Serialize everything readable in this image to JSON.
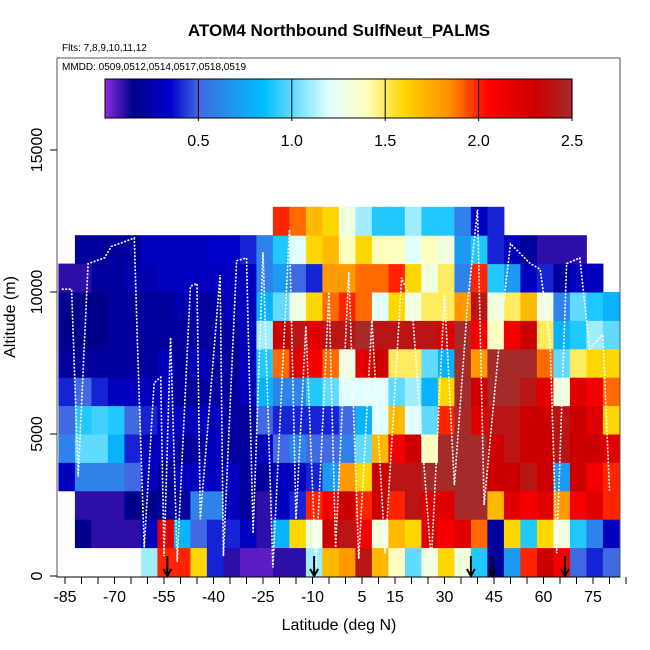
{
  "chart_data": {
    "type": "heatmap",
    "title": "ATOM4 Northbound SulfNeut_PALMS",
    "subtitle_flights": "Flts: 7,8,9,10,11,12",
    "subtitle_dates": "MMDD: 0509,0512,0514,0517,0518,0519",
    "xlabel": "Latitude (deg N)",
    "ylabel": "Altitude (m)",
    "xlim": [
      -87.5,
      85.5
    ],
    "ylim": [
      0,
      18200
    ],
    "x_tick_labels": [
      "-85",
      "-70",
      "-55",
      "-40",
      "-25",
      "-10",
      "5",
      "15",
      "30",
      "45",
      "60",
      "75"
    ],
    "x_tick_values": [
      -85,
      -70,
      -55,
      -40,
      -25,
      -10,
      5,
      15,
      30,
      45,
      60,
      75
    ],
    "y_tick_labels": [
      "0",
      "5000",
      "10000",
      "15000"
    ],
    "y_tick_values": [
      0,
      5000,
      10000,
      15000
    ],
    "colorbar": {
      "range": [
        0,
        2.5
      ],
      "tick_labels": [
        "0.5",
        "1.0",
        "1.5",
        "2.0",
        "2.5"
      ],
      "tick_values": [
        0.5,
        1.0,
        1.5,
        2.0,
        2.5
      ],
      "stops": [
        [
          0,
          "#8a2be2"
        ],
        [
          0.15,
          "#00008b"
        ],
        [
          0.35,
          "#0000cd"
        ],
        [
          0.5,
          "#4169e1"
        ],
        [
          0.85,
          "#00bfff"
        ],
        [
          1.2,
          "#e0ffff"
        ],
        [
          1.4,
          "#ffffc0"
        ],
        [
          1.6,
          "#ffd700"
        ],
        [
          1.85,
          "#ff8c00"
        ],
        [
          2.05,
          "#ff0000"
        ],
        [
          2.3,
          "#cd0000"
        ],
        [
          2.5,
          "#a52a2a"
        ]
      ]
    },
    "lat_bin_edges_start": -87,
    "lat_bin_width": 5,
    "alt_bin_width": 1000,
    "grid_values_by_lat_bin_bottom_to_top": [
      [
        null,
        null,
        null,
        0.3,
        0.6,
        0.5,
        0.4,
        0.2,
        0.15,
        0.15,
        0.1,
        null,
        null
      ],
      [
        null,
        0.15,
        0.1,
        0.6,
        1.0,
        0.9,
        0.5,
        0.2,
        0.15,
        0.15,
        0.1,
        0.2,
        null
      ],
      [
        null,
        0.1,
        0.1,
        0.6,
        1.0,
        0.95,
        0.4,
        0.2,
        0.15,
        0.15,
        0.2,
        0.2,
        null
      ],
      [
        null,
        0.1,
        0.1,
        0.6,
        0.8,
        0.9,
        0.3,
        0.2,
        0.2,
        0.2,
        0.2,
        0.2,
        null
      ],
      [
        null,
        0.1,
        0.15,
        0.5,
        0.4,
        0.5,
        0.3,
        0.2,
        0.2,
        0.2,
        0.25,
        0.2,
        null
      ],
      [
        1.1,
        0.3,
        0.15,
        0.3,
        0.3,
        0.4,
        0.3,
        0.2,
        0.2,
        0.2,
        0.25,
        0.3,
        null
      ],
      [
        2.0,
        2.2,
        0.2,
        0.2,
        0.3,
        0.3,
        0.3,
        0.3,
        0.2,
        0.2,
        0.3,
        0.3,
        null
      ],
      [
        2.0,
        0.8,
        0.2,
        0.3,
        0.2,
        0.3,
        0.2,
        0.2,
        0.2,
        0.25,
        0.3,
        0.3,
        null
      ],
      [
        1.6,
        0.5,
        0.6,
        0.3,
        0.2,
        0.3,
        0.2,
        0.3,
        0.2,
        0.2,
        0.3,
        0.3,
        null
      ],
      [
        0.4,
        0.4,
        0.6,
        0.3,
        0.3,
        0.3,
        0.2,
        0.2,
        0.2,
        0.2,
        0.3,
        0.35,
        null
      ],
      [
        0.1,
        0.4,
        0.3,
        0.3,
        0.2,
        0.2,
        0.2,
        0.2,
        0.2,
        0.3,
        0.3,
        0.35,
        null
      ],
      [
        0.05,
        0.3,
        0.2,
        0.2,
        0.2,
        0.2,
        0.3,
        0.3,
        0.3,
        0.3,
        0.3,
        0.4,
        null
      ],
      [
        0.05,
        0.1,
        0.1,
        0.2,
        0.3,
        0.5,
        0.8,
        0.9,
        1.1,
        0.8,
        0.6,
        0.6,
        null
      ],
      [
        0.1,
        0.8,
        0.3,
        0.3,
        0.5,
        0.4,
        0.6,
        1.9,
        2.3,
        1.0,
        0.7,
        0.9,
        2.0
      ],
      [
        0.1,
        1.6,
        0.4,
        0.3,
        0.6,
        0.4,
        0.6,
        2.2,
        2.4,
        1.3,
        0.5,
        1.2,
        1.9
      ],
      [
        1.1,
        1.3,
        2.0,
        0.4,
        0.5,
        0.4,
        0.9,
        2.1,
        2.2,
        1.6,
        0.4,
        1.6,
        1.7
      ],
      [
        1.7,
        2.3,
        2.1,
        0.7,
        0.5,
        0.4,
        1.0,
        1.9,
        2.4,
        1.9,
        1.8,
        1.7,
        1.6
      ],
      [
        1.8,
        2.4,
        2.3,
        1.8,
        0.6,
        0.5,
        1.2,
        1.3,
        2.4,
        2.0,
        1.8,
        1.4,
        1.3
      ],
      [
        2.4,
        2.1,
        2.0,
        1.6,
        1.0,
        0.8,
        1.2,
        2.2,
        2.5,
        1.9,
        1.9,
        1.6,
        1.1
      ],
      [
        1.7,
        1.3,
        2.3,
        2.3,
        1.7,
        1.2,
        1.2,
        2.3,
        2.4,
        1.2,
        1.9,
        1.4,
        0.9
      ],
      [
        1.4,
        1.7,
        2.0,
        2.4,
        2.1,
        1.7,
        1.0,
        1.5,
        2.4,
        1.6,
        2.0,
        1.4,
        0.9
      ],
      [
        1.0,
        1.6,
        2.4,
        2.4,
        2.3,
        1.2,
        1.1,
        1.5,
        2.4,
        1.3,
        1.6,
        1.2,
        1.1
      ],
      [
        1.3,
        2.2,
        2.2,
        2.5,
        1.4,
        1.0,
        0.8,
        1.0,
        2.4,
        1.5,
        1.3,
        1.4,
        0.9
      ],
      [
        1.6,
        2.1,
        2.2,
        2.5,
        2.5,
        2.0,
        1.6,
        0.8,
        2.2,
        1.5,
        1.5,
        1.3,
        0.9
      ],
      [
        1.3,
        2.2,
        2.5,
        2.5,
        2.5,
        2.5,
        2.5,
        2.5,
        2.5,
        1.8,
        0.6,
        0.7,
        0.6
      ],
      [
        0.9,
        1.9,
        2.5,
        2.5,
        2.5,
        2.2,
        2.3,
        1.8,
        2.1,
        2.4,
        2.0,
        0.9,
        0.3
      ],
      [
        0.2,
        0.2,
        1.7,
        2.3,
        2.3,
        2.4,
        2.5,
        2.5,
        1.4,
        1.3,
        0.9,
        0.4,
        0.4
      ],
      [
        0.7,
        1.6,
        2.2,
        2.3,
        2.4,
        2.4,
        2.5,
        2.5,
        2.1,
        1.5,
        0.7,
        0.3,
        null
      ],
      [
        2.0,
        0.9,
        2.1,
        2.4,
        2.3,
        2.3,
        2.4,
        2.5,
        2.3,
        1.7,
        0.3,
        0.2,
        null
      ],
      [
        2.3,
        1.6,
        2.2,
        2.3,
        2.3,
        2.3,
        2.2,
        1.9,
        1.5,
        1.3,
        0.4,
        0.1,
        null
      ],
      [
        2.1,
        1.3,
        1.8,
        0.7,
        2.4,
        2.4,
        1.3,
        1.0,
        0.8,
        0.6,
        0.2,
        0.1,
        null
      ],
      [
        0.5,
        0.9,
        2.1,
        2.3,
        2.3,
        2.3,
        2.2,
        1.5,
        0.9,
        1.0,
        0.3,
        0.1,
        null
      ],
      [
        0.4,
        0.6,
        2.2,
        2.1,
        2.3,
        2.2,
        2.1,
        1.6,
        1.1,
        0.9,
        0.3,
        null,
        null
      ],
      [
        0.5,
        0.3,
        2.0,
        2.0,
        2.2,
        1.6,
        1.9,
        1.6,
        1.0,
        0.8,
        null,
        null,
        null
      ]
    ],
    "flight_track_lat_alt": [
      [
        -86,
        10100
      ],
      [
        -83,
        10100
      ],
      [
        -81,
        3500
      ],
      [
        -78,
        11000
      ],
      [
        -73,
        11200
      ],
      [
        -71,
        11600
      ],
      [
        -64,
        11900
      ],
      [
        -63,
        8000
      ],
      [
        -61,
        1000
      ],
      [
        -58,
        6800
      ],
      [
        -56,
        7000
      ],
      [
        -55,
        700
      ],
      [
        -53,
        8400
      ],
      [
        -51,
        500
      ],
      [
        -47,
        10200
      ],
      [
        -45,
        10300
      ],
      [
        -44,
        2000
      ],
      [
        -38,
        10600
      ],
      [
        -37,
        700
      ],
      [
        -33,
        11100
      ],
      [
        -30,
        11200
      ],
      [
        -28,
        1500
      ],
      [
        -25,
        11400
      ],
      [
        -22,
        300
      ],
      [
        -17,
        12200
      ],
      [
        -15,
        2000
      ],
      [
        -12,
        8800
      ],
      [
        -9,
        300
      ],
      [
        -5,
        10000
      ],
      [
        -3,
        1000
      ],
      [
        1,
        10700
      ],
      [
        4,
        600
      ],
      [
        8,
        9000
      ],
      [
        12,
        800
      ],
      [
        17,
        10500
      ],
      [
        20,
        9700
      ],
      [
        26,
        500
      ],
      [
        30,
        9900
      ],
      [
        33,
        3200
      ],
      [
        37,
        9600
      ],
      [
        40,
        12900
      ],
      [
        42,
        2500
      ],
      [
        47,
        8700
      ],
      [
        50,
        11700
      ],
      [
        56,
        11000
      ],
      [
        59,
        10800
      ],
      [
        62,
        8200
      ],
      [
        64,
        800
      ],
      [
        67,
        11000
      ],
      [
        71,
        11200
      ],
      [
        74,
        8000
      ],
      [
        78,
        8500
      ],
      [
        80,
        3000
      ]
    ],
    "markers": {
      "type": "down-arrow",
      "latitudes": [
        -54,
        -9.5,
        38,
        44.5,
        66.5
      ]
    }
  }
}
